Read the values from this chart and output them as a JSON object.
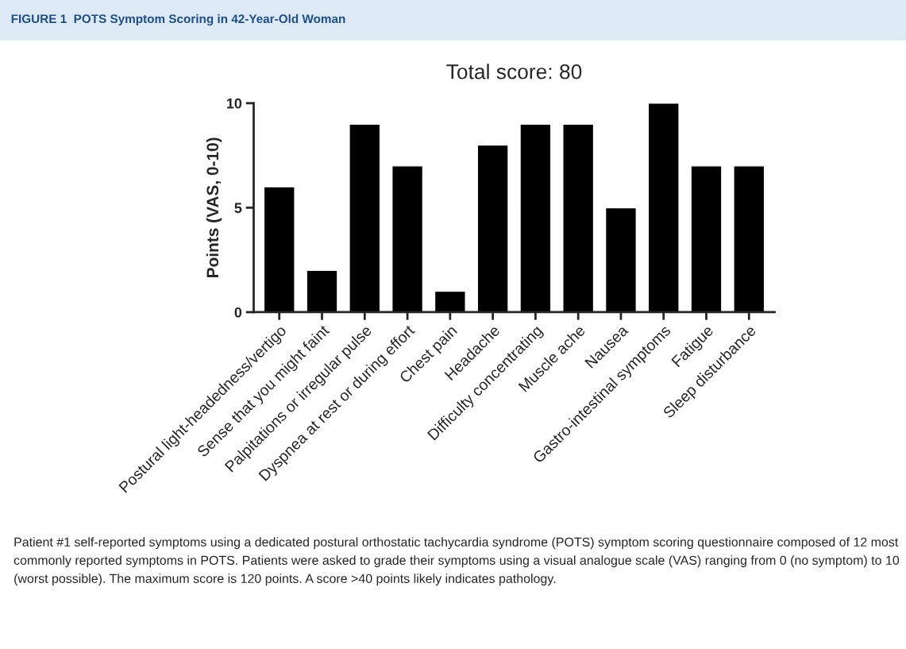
{
  "chart_data": {
    "type": "bar",
    "title": "FIGURE 1  POTS Symptom Scoring in 42-Year-Old Woman",
    "subtitle": "Total score: 80",
    "ylabel": "Points (VAS, 0-10)",
    "categories": [
      "Postural light-headedness/vertigo",
      "Sense that you might faint",
      "Palpitations or irregular pulse",
      "Dyspnea at rest or during effort",
      "Chest pain",
      "Headache",
      "Difficulty concentrating",
      "Muscle ache",
      "Nausea",
      "Gastro-intestinal symptoms",
      "Fatigue",
      "Sleep disturbance"
    ],
    "values": [
      6,
      2,
      9,
      7,
      1,
      8,
      9,
      9,
      5,
      10,
      7,
      7
    ],
    "color": "#000000",
    "ylim": [
      0,
      10
    ],
    "yticks": [
      0,
      5,
      10
    ],
    "grid": false,
    "legend": false,
    "annotations": [
      "Patient #1 self-reported symptoms using a dedicated postural orthostatic tachycardia syndrome (POTS) symptom scoring questionnaire composed of 12 most commonly reported symptoms in POTS. Patients were asked to grade their symptoms using a visual analogue scale (VAS) ranging from 0 (no symptom) to 10 (worst possible). The maximum score is 120 points. A score >40 points likely indicates pathology."
    ]
  }
}
